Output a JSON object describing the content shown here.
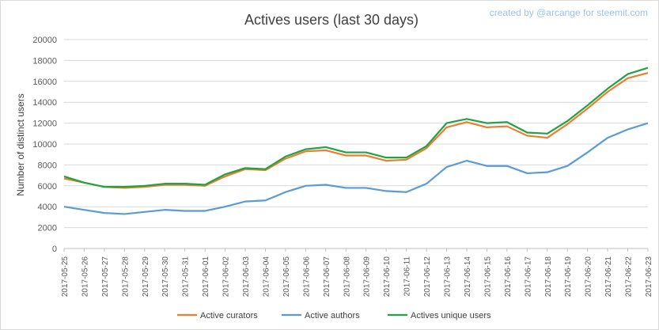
{
  "chart_data": {
    "type": "line",
    "title": "Actives users (last 30 days)",
    "credit": "created by @arcange for steemit.com",
    "xlabel": "",
    "ylabel": "Number of distinct users",
    "ylim": [
      0,
      20000
    ],
    "yticks": [
      0,
      2000,
      4000,
      6000,
      8000,
      10000,
      12000,
      14000,
      16000,
      18000,
      20000
    ],
    "ytick_labels": [
      "0",
      "2000",
      "4000",
      "6000",
      "8000",
      "10000",
      "12000",
      "14000",
      "16000",
      "18000",
      "20000"
    ],
    "grid": "horizontal",
    "legend_position": "bottom",
    "categories": [
      "2017-05-25",
      "2017-05-26",
      "2017-05-27",
      "2017-05-28",
      "2017-05-29",
      "2017-05-30",
      "2017-05-31",
      "2017-06-01",
      "2017-06-02",
      "2017-06-03",
      "2017-06-04",
      "2017-06-05",
      "2017-06-06",
      "2017-06-07",
      "2017-06-08",
      "2017-06-09",
      "2017-06-10",
      "2017-06-11",
      "2017-06-12",
      "2017-06-13",
      "2017-06-14",
      "2017-06-15",
      "2017-06-16",
      "2017-06-17",
      "2017-06-18",
      "2017-06-19",
      "2017-06-20",
      "2017-06-21",
      "2017-06-22",
      "2017-06-23"
    ],
    "series": [
      {
        "name": "Active curators",
        "color": "#ed7d31",
        "values": [
          6700,
          6300,
          5900,
          5800,
          5900,
          6100,
          6100,
          6000,
          6900,
          7600,
          7500,
          8600,
          9300,
          9400,
          8900,
          8900,
          8400,
          8500,
          9600,
          11600,
          12100,
          11600,
          11700,
          10800,
          10600,
          11900,
          13400,
          15000,
          16300,
          16800
        ]
      },
      {
        "name": "Active authors",
        "color": "#5b9bd5",
        "values": [
          4000,
          3700,
          3400,
          3300,
          3500,
          3700,
          3600,
          3600,
          4000,
          4500,
          4600,
          5400,
          6000,
          6100,
          5800,
          5800,
          5500,
          5400,
          6200,
          7800,
          8400,
          7900,
          7900,
          7200,
          7300,
          7900,
          9200,
          10600,
          11400,
          12000
        ]
      },
      {
        "name": "Actives unique users",
        "color": "#1fa343",
        "values": [
          6900,
          6300,
          5900,
          5900,
          6000,
          6200,
          6200,
          6100,
          7100,
          7700,
          7600,
          8800,
          9500,
          9700,
          9200,
          9200,
          8700,
          8700,
          9800,
          12000,
          12400,
          12000,
          12100,
          11100,
          11000,
          12200,
          13700,
          15300,
          16700,
          17300
        ]
      }
    ]
  }
}
